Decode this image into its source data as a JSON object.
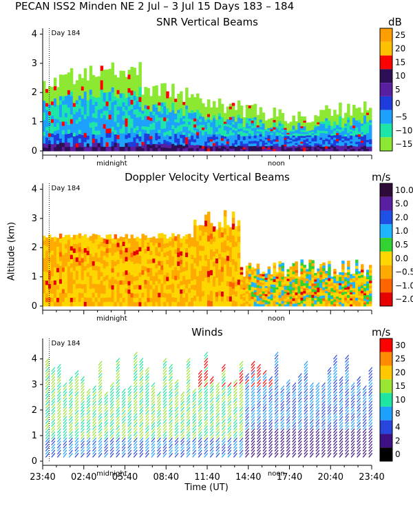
{
  "figure": {
    "header": "PECAN ISS2 Minden NE    2 Jul –   3 Jul 15 Days 183 – 184",
    "xlabel": "Time (UT)",
    "ylabel": "Altitude (km)"
  },
  "chart_data": [
    {
      "type": "heatmap",
      "title": "SNR Vertical Beams",
      "colorbar_unit": "dB",
      "colorbar_ticks": [
        "25",
        "20",
        "15",
        "10",
        "5",
        "0",
        "−5",
        "−10",
        "−15"
      ],
      "colorbar_colors": [
        "#ff9e00",
        "#ffc000",
        "#ff0000",
        "#2e0f55",
        "#5a1ea0",
        "#1e3cdc",
        "#1ea0ff",
        "#1ee6a8",
        "#8ce832"
      ],
      "ylim": [
        0,
        4.2
      ],
      "y_ticks": [
        "0",
        "1",
        "2",
        "3",
        "4"
      ],
      "x_inner_labels": [
        "midnight",
        "noon"
      ],
      "day_marker": "Day 184"
    },
    {
      "type": "heatmap",
      "title": "Doppler Velocity Vertical Beams",
      "colorbar_unit": "m/s",
      "colorbar_ticks": [
        "10.0",
        "5.0",
        "2.0",
        "1.0",
        "0.5",
        "0.0",
        "−0.5",
        "−1.0",
        "−2.0"
      ],
      "colorbar_colors": [
        "#2e0a38",
        "#5a1ea0",
        "#1e50e6",
        "#1eb4ff",
        "#32d232",
        "#ffd700",
        "#ffaa00",
        "#ff6400",
        "#e60000"
      ],
      "ylim": [
        0,
        4.2
      ],
      "y_ticks": [
        "0",
        "1",
        "2",
        "3",
        "4"
      ],
      "x_inner_labels": [
        "midnight",
        "noon"
      ],
      "day_marker": "Day 184"
    },
    {
      "type": "scatter",
      "title": "Winds",
      "colorbar_unit": "m/s",
      "colorbar_ticks": [
        "30",
        "25",
        "20",
        "15",
        "10",
        "8",
        "4",
        "2",
        "0"
      ],
      "colorbar_colors": [
        "#ff0000",
        "#ff8c00",
        "#ffc800",
        "#9be632",
        "#1ee6a0",
        "#1ea0ff",
        "#2846dc",
        "#3c0f82",
        "#000000"
      ],
      "ylim": [
        0,
        4.8
      ],
      "y_ticks": [
        "0",
        "1",
        "2",
        "3",
        "4"
      ],
      "x_ticks": [
        "23:40",
        "02:40",
        "05:40",
        "08:40",
        "11:40",
        "14:40",
        "17:40",
        "20:40",
        "23:40"
      ],
      "x_inner_labels": [
        "midnight",
        "noon"
      ],
      "day_marker": "Day 184"
    }
  ]
}
